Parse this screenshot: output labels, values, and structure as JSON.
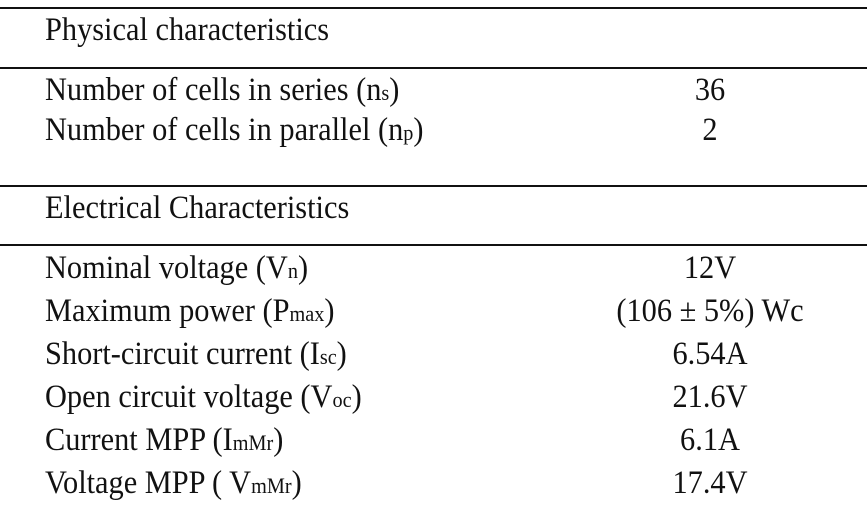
{
  "sections": [
    {
      "title": "Physical characteristics",
      "rows": [
        {
          "label": "Number of cells in series (n",
          "sub": "s",
          "end": ")",
          "value": "36"
        },
        {
          "label": "Number of cells in parallel (n",
          "sub": "p",
          "end": ")",
          "value": "2"
        }
      ]
    },
    {
      "title": "Electrical Characteristics",
      "rows": [
        {
          "label": "Nominal voltage (V",
          "sub": "n",
          "end": ")",
          "value": "12V"
        },
        {
          "label": "Maximum power (P",
          "sub": "max",
          "end": ")",
          "value": "(106 ± 5%) Wc"
        },
        {
          "label": "Short-circuit current (I",
          "sub": "sc",
          "end": ")",
          "value": "6.54A"
        },
        {
          "label": "Open circuit voltage (V",
          "sub": "oc",
          "end": ")",
          "value": "21.6V"
        },
        {
          "label": "Current MPP (I",
          "sub": "mMr",
          "end": ")",
          "value": "6.1A"
        },
        {
          "label": "Voltage MPP ( V",
          "sub": "mMr",
          "end": ")",
          "value": "17.4V"
        }
      ]
    }
  ]
}
